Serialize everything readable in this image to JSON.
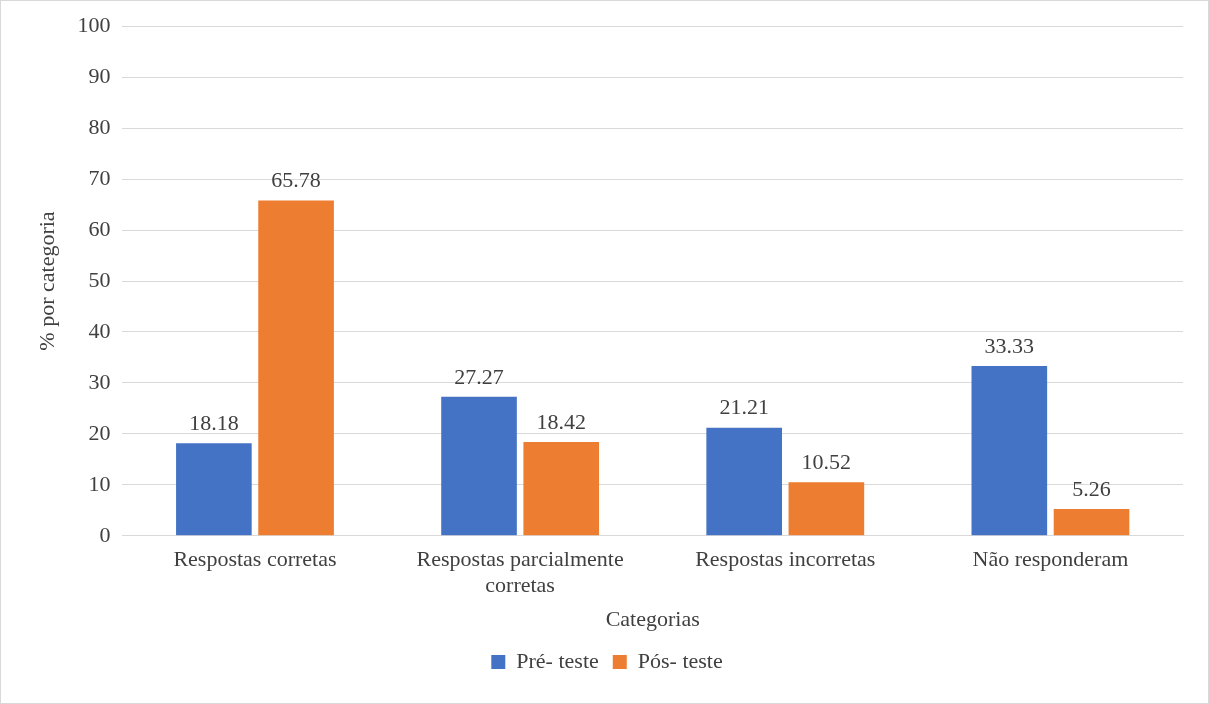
{
  "chart_data": {
    "type": "bar",
    "xlabel": "Categorias",
    "ylabel": "% por categoria",
    "categories": [
      "Respostas corretas",
      "Respostas parcialmente corretas",
      "Respostas incorretas",
      "Não responderam"
    ],
    "series": [
      {
        "name": "Pré- teste",
        "color": "#4472c4",
        "values": [
          18.18,
          27.27,
          21.21,
          33.33
        ]
      },
      {
        "name": "Pós- teste",
        "color": "#ed7d31",
        "values": [
          65.78,
          18.42,
          10.52,
          5.26
        ]
      }
    ],
    "ylim": [
      0,
      100
    ],
    "yticks": [
      0,
      10,
      20,
      30,
      40,
      50,
      60,
      70,
      80,
      90,
      100
    ],
    "grid": "y",
    "legend": "bottom",
    "data_labels": true
  }
}
